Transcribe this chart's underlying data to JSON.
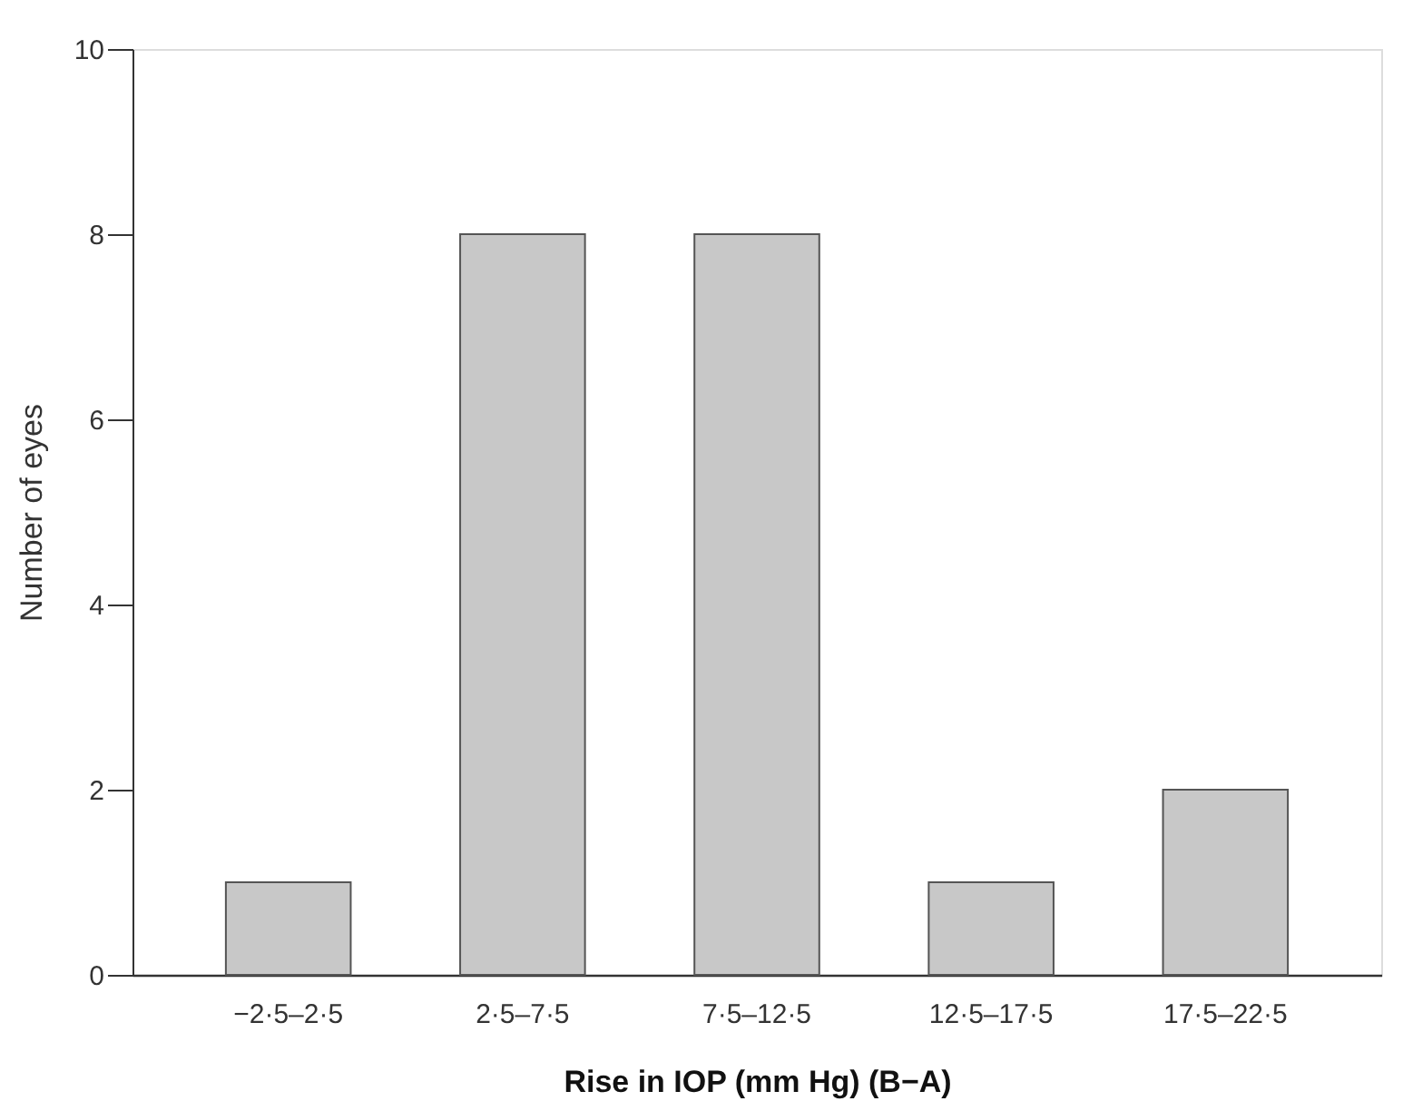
{
  "chart_data": {
    "type": "bar",
    "xlabel": "Rise in IOP (mm Hg) (B−A)",
    "ylabel": "Number of eyes",
    "categories": [
      "−2·5–2·5",
      "2·5–7·5",
      "7·5–12·5",
      "12·5–17·5",
      "17·5–22·5"
    ],
    "values": [
      1,
      8,
      8,
      1,
      2
    ],
    "color": "#c8c8c8",
    "ylim": [
      0,
      10
    ],
    "yticks": [
      0,
      2,
      4,
      6,
      8,
      10
    ]
  }
}
